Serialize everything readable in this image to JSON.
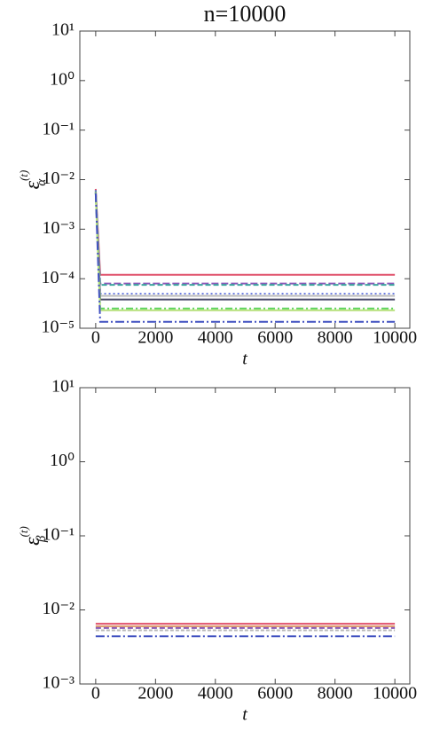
{
  "chart_data": [
    {
      "type": "line",
      "title": "n=10000",
      "y_label": {
        "base": "ε",
        "sub": "α",
        "sup": "(t)"
      },
      "x_label": "t",
      "log_y": true,
      "xlim": [
        -530,
        10500
      ],
      "ylim": [
        1e-05,
        10
      ],
      "xticks": [
        0,
        2000,
        4000,
        6000,
        8000,
        10000
      ],
      "yticks": [
        {
          "value": 1e-05,
          "label": "10⁻⁵"
        },
        {
          "value": 0.0001,
          "label": "10⁻⁴"
        },
        {
          "value": 0.001,
          "label": "10⁻³"
        },
        {
          "value": 0.01,
          "label": "10⁻²"
        },
        {
          "value": 0.1,
          "label": "10⁻¹"
        },
        {
          "value": 1,
          "label": "10⁰"
        },
        {
          "value": 10,
          "label": "10¹"
        }
      ],
      "x": [
        0,
        150,
        10000
      ],
      "series": [
        {
          "color": "#e0506a",
          "dash": "none",
          "values": [
            0.0065,
            0.00012,
            0.00012
          ]
        },
        {
          "color": "#8a5ab8",
          "dash": "8 3",
          "values": [
            0.0062,
            8e-05,
            8e-05
          ]
        },
        {
          "color": "#3fa6a0",
          "dash": "6 3",
          "values": [
            0.006,
            7.5e-05,
            7.5e-05
          ]
        },
        {
          "color": "#6f7fe0",
          "dash": "2 3",
          "values": [
            0.0058,
            5e-05,
            5e-05
          ]
        },
        {
          "color": "#b9b9b9",
          "dash": "none",
          "values": [
            0.0057,
            4.5e-05,
            4.5e-05
          ]
        },
        {
          "color": "#4a4a6a",
          "dash": "none",
          "values": [
            0.0056,
            3.8e-05,
            3.8e-05
          ]
        },
        {
          "color": "#5cd45c",
          "dash": "8 3 2 3",
          "values": [
            0.0055,
            2.5e-05,
            2.5e-05
          ]
        },
        {
          "color": "#b6e07a",
          "dash": "none",
          "values": [
            0.0054,
            2.3e-05,
            2.3e-05
          ]
        },
        {
          "color": "#4050c0",
          "dash": "10 3 2 3",
          "values": [
            0.0053,
            1.35e-05,
            1.35e-05
          ]
        }
      ]
    },
    {
      "type": "line",
      "y_label": {
        "base": "ε",
        "sub": "β",
        "sup": "(t)"
      },
      "x_label": "t",
      "log_y": true,
      "xlim": [
        -530,
        10500
      ],
      "ylim": [
        0.001,
        10
      ],
      "xticks": [
        0,
        2000,
        4000,
        6000,
        8000,
        10000
      ],
      "yticks": [
        {
          "value": 0.001,
          "label": "10⁻³"
        },
        {
          "value": 0.01,
          "label": "10⁻²"
        },
        {
          "value": 0.1,
          "label": "10⁻¹"
        },
        {
          "value": 1,
          "label": "10⁰"
        },
        {
          "value": 10,
          "label": "10¹"
        }
      ],
      "x": [
        0,
        10000
      ],
      "series": [
        {
          "color": "#e0506a",
          "dash": "none",
          "values": [
            0.0065,
            0.0065
          ]
        },
        {
          "color": "#e0a070",
          "dash": "none",
          "values": [
            0.006,
            0.006
          ]
        },
        {
          "color": "#8a5ab8",
          "dash": "6 3",
          "values": [
            0.0057,
            0.0057
          ]
        },
        {
          "color": "#b9b9b9",
          "dash": "4 2",
          "values": [
            0.0053,
            0.0053
          ]
        },
        {
          "color": "#4050c0",
          "dash": "10 3 2 3",
          "values": [
            0.0044,
            0.0044
          ]
        }
      ]
    }
  ]
}
